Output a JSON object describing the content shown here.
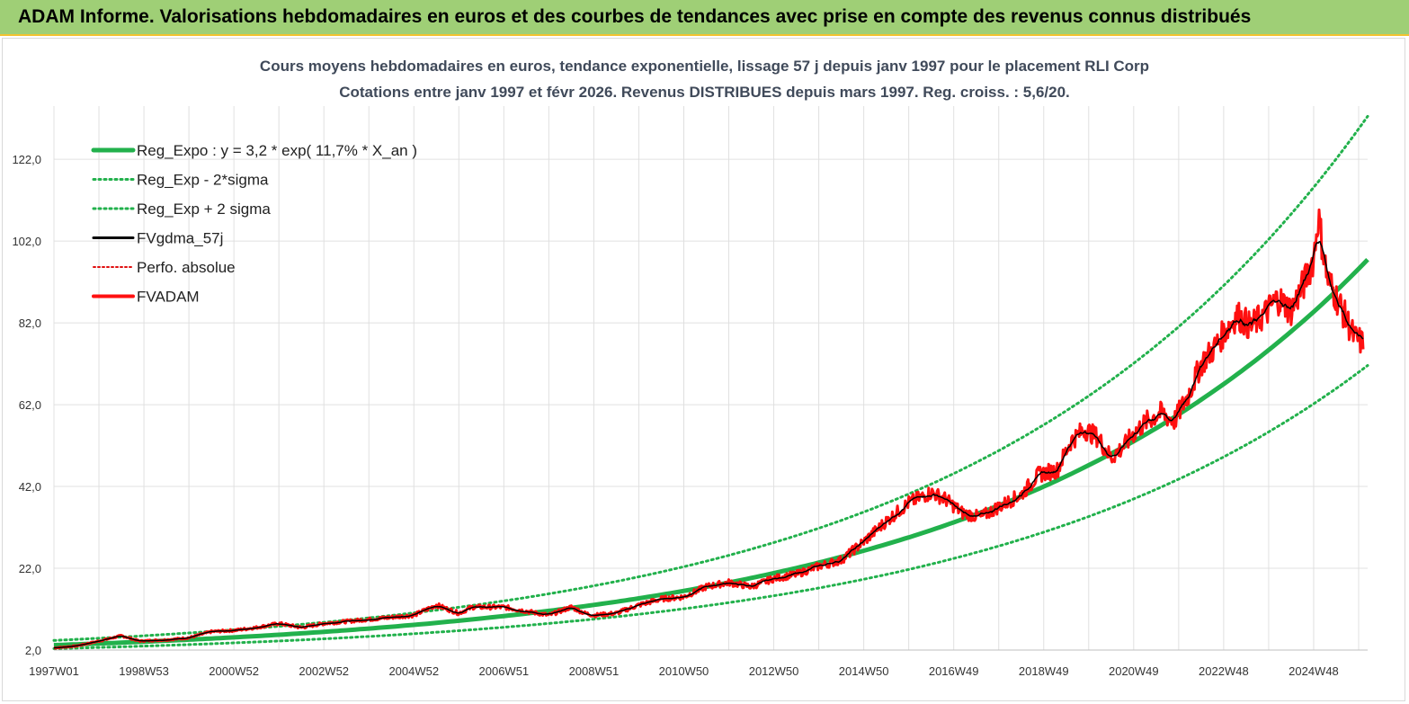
{
  "header": {
    "title": "ADAM Informe. Valorisations hebdomadaires en euros et des courbes de tendances avec prise en compte des revenus connus distribués"
  },
  "colors": {
    "reg_expo": "#22b14c",
    "bands": "#22b14c",
    "fvgdma": "#000000",
    "perfo": "#e01010",
    "fvadam": "#ff1010",
    "grid": "#e0e0e0"
  },
  "chart_data": {
    "type": "line",
    "title": "Cours moyens hebdomadaires en euros, tendance exponentielle, lissage 57 j depuis janv 1997 pour le placement RLI Corp",
    "subtitle": "Cotations entre janv 1997 et févr 2026. Revenus DISTRIBUES depuis mars 1997. Reg. croiss. : 5,6/20.",
    "x_ticks": [
      {
        "label": "1997W01",
        "year": 1997.0
      },
      {
        "label": "1998W53",
        "year": 1999.0
      },
      {
        "label": "2000W52",
        "year": 2001.0
      },
      {
        "label": "2002W52",
        "year": 2003.0
      },
      {
        "label": "2004W52",
        "year": 2005.0
      },
      {
        "label": "2006W51",
        "year": 2007.0
      },
      {
        "label": "2008W51",
        "year": 2009.0
      },
      {
        "label": "2010W50",
        "year": 2011.0
      },
      {
        "label": "2012W50",
        "year": 2013.0
      },
      {
        "label": "2014W50",
        "year": 2015.0
      },
      {
        "label": "2016W49",
        "year": 2017.0
      },
      {
        "label": "2018W49",
        "year": 2019.0
      },
      {
        "label": "2020W49",
        "year": 2021.0
      },
      {
        "label": "2022W48",
        "year": 2023.0
      },
      {
        "label": "2024W48",
        "year": 2025.0
      }
    ],
    "xlim": [
      1997.0,
      2026.2
    ],
    "y_ticks": [
      "2,0",
      "22,0",
      "42,0",
      "62,0",
      "82,0",
      "102,0",
      "122,0"
    ],
    "ylim": [
      2,
      135
    ],
    "grid": true,
    "legend_position": "top-left",
    "series": [
      {
        "name": "Reg_Expo : y = 3,2 * exp( 11,7% *  X_an )",
        "style": "solid-thick",
        "a": 3.2,
        "rate": 0.117
      },
      {
        "name": "Reg_Exp - 2*sigma",
        "style": "dotted",
        "a": 2.35,
        "rate": 0.117
      },
      {
        "name": "Reg_Exp + 2 sigma",
        "style": "dotted",
        "a": 4.35,
        "rate": 0.117
      },
      {
        "name": "FVgdma_57j",
        "style": "solid-thin"
      },
      {
        "name": "Perfo. absolue",
        "style": "dotted-red"
      },
      {
        "name": "FVADAM",
        "style": "solid-red",
        "x": [
          1997.0,
          1997.5,
          1998.0,
          1998.5,
          1998.9,
          1999.5,
          2000.0,
          2000.5,
          2001.0,
          2001.5,
          2002.0,
          2002.5,
          2003.0,
          2003.5,
          2004.0,
          2004.5,
          2005.0,
          2005.5,
          2006.0,
          2006.3,
          2006.7,
          2007.0,
          2007.5,
          2008.0,
          2008.5,
          2008.8,
          2009.0,
          2009.5,
          2010.0,
          2010.5,
          2011.0,
          2011.5,
          2012.0,
          2012.5,
          2013.0,
          2013.5,
          2014.0,
          2014.5,
          2015.0,
          2015.5,
          2016.0,
          2016.5,
          2016.8,
          2017.2,
          2017.6,
          2018.0,
          2018.5,
          2018.9,
          2019.3,
          2019.6,
          2019.9,
          2020.2,
          2020.5,
          2020.8,
          2021.0,
          2021.3,
          2021.6,
          2021.9,
          2022.2,
          2022.5,
          2022.8,
          2023.0,
          2023.3,
          2023.6,
          2023.9,
          2024.2,
          2024.5,
          2024.8,
          2025.0,
          2025.1,
          2025.3,
          2025.6,
          2025.9,
          2026.1
        ],
        "y": [
          2.5,
          3.0,
          4.2,
          5.5,
          4.2,
          4.5,
          5.0,
          6.5,
          6.8,
          7.5,
          8.5,
          7.5,
          8.5,
          9.0,
          9.5,
          10.0,
          10.5,
          13.0,
          11.0,
          12.5,
          12.5,
          12.5,
          11.5,
          10.5,
          12.5,
          11.0,
          10.5,
          11.0,
          13.0,
          14.5,
          15.0,
          17.5,
          18.5,
          17.5,
          19.5,
          20.5,
          22.5,
          24.0,
          28.5,
          33.5,
          38.0,
          40.5,
          39.0,
          35.5,
          34.5,
          37.0,
          40.0,
          45.0,
          46.0,
          53.0,
          56.0,
          54.0,
          49.0,
          52.0,
          55.0,
          58.0,
          60.0,
          58.0,
          64.0,
          72.0,
          76.0,
          79.5,
          84.0,
          81.0,
          84.0,
          88.0,
          85.0,
          92.0,
          98.0,
          108.0,
          93.0,
          86.0,
          78.5,
          77.0
        ]
      }
    ]
  }
}
